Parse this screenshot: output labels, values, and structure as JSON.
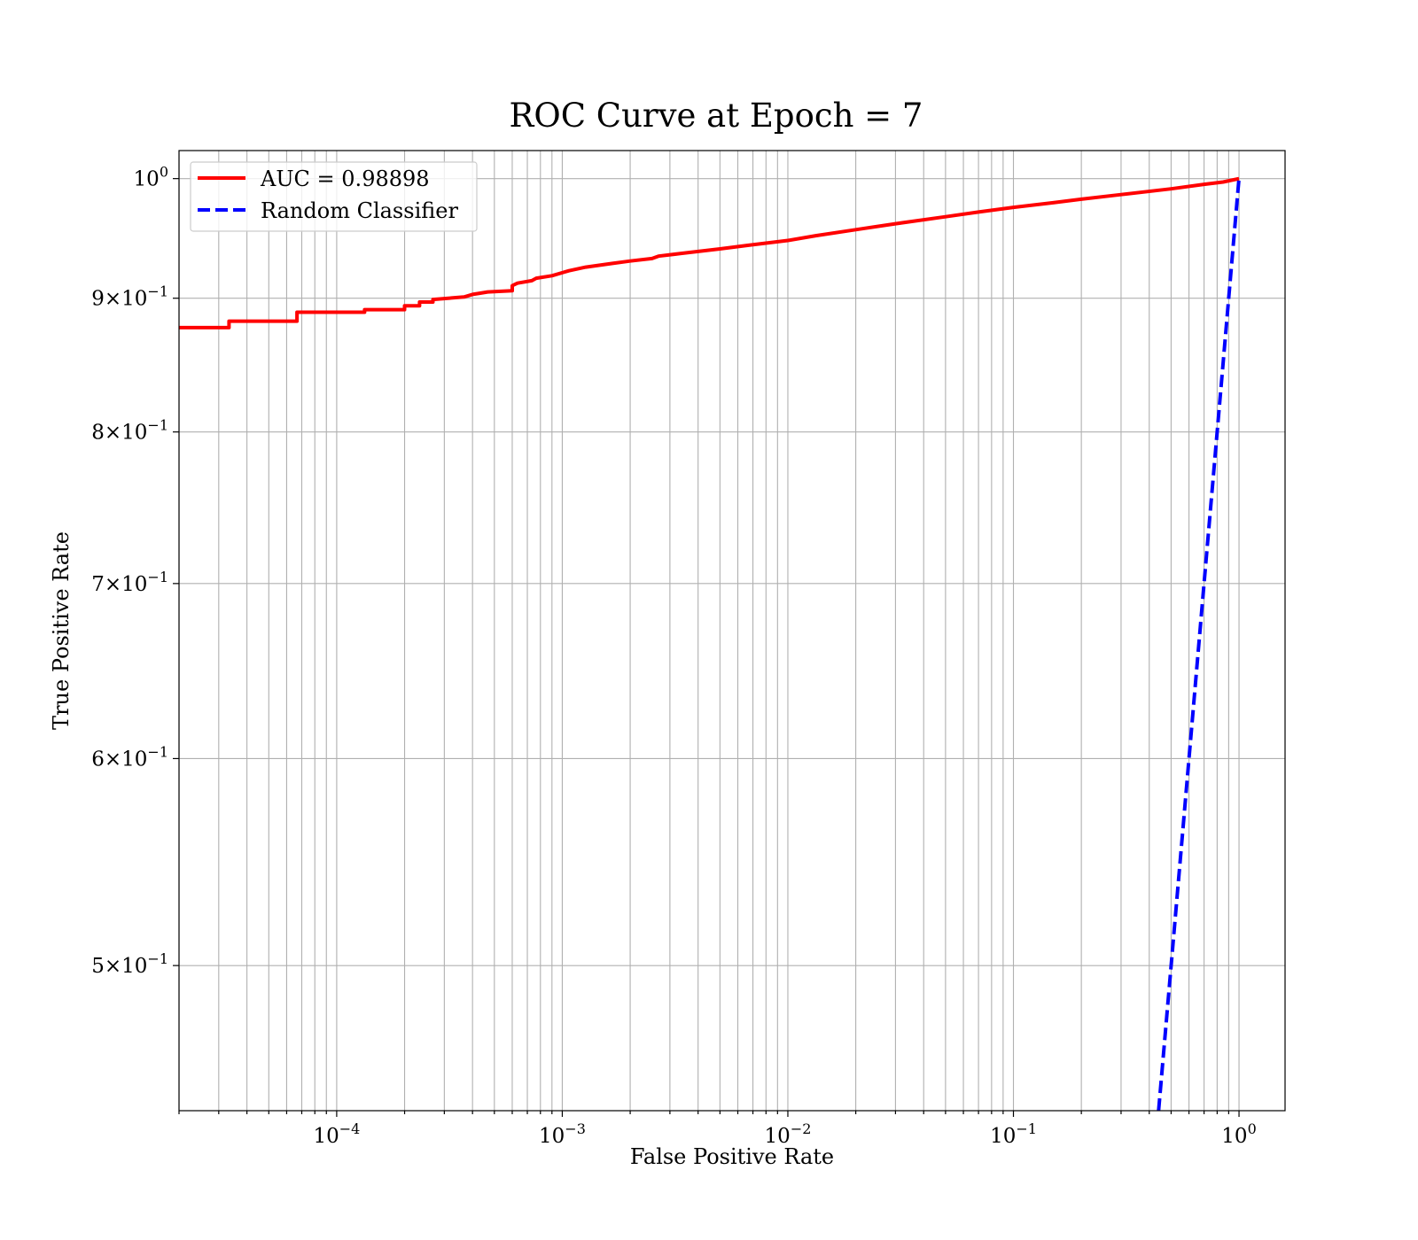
{
  "chart_data": {
    "type": "line",
    "title": "ROC Curve at Epoch = 7",
    "xlabel": "False Positive Rate",
    "ylabel": "True Positive Rate",
    "xscale": "log",
    "yscale": "log",
    "xlim": [
      2e-05,
      1.6
    ],
    "ylim": [
      0.44,
      1.025
    ],
    "grid": "both",
    "legend_position": "top-left",
    "x_ticks": [
      {
        "value": 0.0001,
        "base": "10",
        "exp": "−4"
      },
      {
        "value": 0.001,
        "base": "10",
        "exp": "−3"
      },
      {
        "value": 0.01,
        "base": "10",
        "exp": "−2"
      },
      {
        "value": 0.1,
        "base": "10",
        "exp": "−1"
      },
      {
        "value": 1,
        "base": "10",
        "exp": "0"
      }
    ],
    "y_ticks": [
      {
        "value": 1.0,
        "mant": "",
        "base": "10",
        "exp": "0"
      },
      {
        "value": 0.9,
        "mant": "9",
        "base": "10",
        "exp": "−1"
      },
      {
        "value": 0.8,
        "mant": "8",
        "base": "10",
        "exp": "−1"
      },
      {
        "value": 0.7,
        "mant": "7",
        "base": "10",
        "exp": "−1"
      },
      {
        "value": 0.6,
        "mant": "6",
        "base": "10",
        "exp": "−1"
      },
      {
        "value": 0.5,
        "mant": "5",
        "base": "10",
        "exp": "−1"
      }
    ],
    "series": [
      {
        "name": "AUC = 0.98898",
        "color": "#ff0000",
        "style": "solid",
        "x": [
          2e-05,
          3.33e-05,
          3.33e-05,
          6.67e-05,
          6.67e-05,
          0.000133,
          0.000133,
          0.0002,
          0.0002,
          0.000233,
          0.000233,
          0.000267,
          0.000267,
          0.000367,
          0.0004,
          0.000433,
          0.000467,
          0.0006,
          0.0006,
          0.000633,
          0.000733,
          0.000767,
          0.0009,
          0.00107,
          0.00127,
          0.00167,
          0.002,
          0.0025,
          0.00267,
          0.0033,
          0.005,
          0.0067,
          0.01,
          0.0133,
          0.02,
          0.03,
          0.05,
          0.07,
          0.1,
          0.15,
          0.2,
          0.3,
          0.5,
          0.7,
          0.85,
          1.0
        ],
        "y": [
          0.877,
          0.877,
          0.882,
          0.882,
          0.889,
          0.889,
          0.891,
          0.891,
          0.894,
          0.894,
          0.897,
          0.897,
          0.899,
          0.901,
          0.903,
          0.904,
          0.905,
          0.906,
          0.91,
          0.912,
          0.914,
          0.916,
          0.918,
          0.922,
          0.925,
          0.928,
          0.93,
          0.932,
          0.934,
          0.936,
          0.94,
          0.943,
          0.947,
          0.951,
          0.956,
          0.961,
          0.967,
          0.971,
          0.975,
          0.979,
          0.982,
          0.986,
          0.991,
          0.995,
          0.997,
          1.0
        ]
      },
      {
        "name": "Random Classifier",
        "color": "#0000ff",
        "style": "dashed",
        "x": [
          0.44,
          0.55,
          0.7,
          0.85,
          1.0
        ],
        "y": [
          0.44,
          0.55,
          0.7,
          0.85,
          1.0
        ]
      }
    ]
  }
}
